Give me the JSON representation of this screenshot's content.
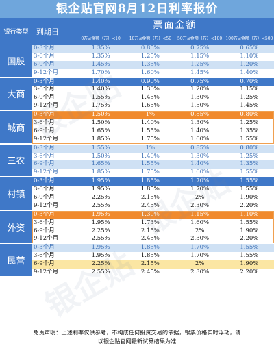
{
  "title": "银企贴官网8月12日利率报价",
  "header": {
    "bank_type": "银行类型",
    "term": "到期日",
    "face_value": "票面金额",
    "columns": [
      "0万≤金额（万）<10",
      "10万≤金额（万）<50",
      "50万≤金额（万）<100",
      "100万≤金额（万）<500"
    ]
  },
  "groups": [
    {
      "name": "国股",
      "rows": [
        {
          "term": "0-3个月",
          "values": [
            "1.35%",
            "0.85%",
            "0.75%",
            "0.65%"
          ],
          "style": "blue-soft"
        },
        {
          "term": "3-6个月",
          "values": [
            "1.35%",
            "1.25%",
            "1.15%",
            "1.10%"
          ],
          "style": "white-blue"
        },
        {
          "term": "6-9个月",
          "values": [
            "1.45%",
            "1.35%",
            "1.25%",
            "1.20%"
          ],
          "style": "blue-soft"
        },
        {
          "term": "9-12个月",
          "values": [
            "1.70%",
            "1.60%",
            "1.45%",
            "1.40%"
          ],
          "style": "white-blue"
        }
      ]
    },
    {
      "name": "大商",
      "rows": [
        {
          "term": "0-3个月",
          "values": [
            "1.40%",
            "0.90%",
            "0.75%",
            "0.70%"
          ],
          "style": "blue-strong"
        },
        {
          "term": "3-6个月",
          "values": [
            "1.40%",
            "1.30%",
            "1.20%",
            "1.15%"
          ],
          "style": "white-black"
        },
        {
          "term": "6-9个月",
          "values": [
            "1.55%",
            "1.45%",
            "1.30%",
            "1.25%"
          ],
          "style": "white-black"
        },
        {
          "term": "9-12个月",
          "values": [
            "1.75%",
            "1.65%",
            "1.50%",
            "1.45%"
          ],
          "style": "white-black"
        }
      ]
    },
    {
      "name": "城商",
      "border": "orange",
      "rows": [
        {
          "term": "0-3个月",
          "values": [
            "1.50%",
            "1%",
            "0.85%",
            "0.80%"
          ],
          "style": "orange"
        },
        {
          "term": "3-6个月",
          "values": [
            "1.50%",
            "1.40%",
            "1.30%",
            "1.25%"
          ],
          "style": "white-black"
        },
        {
          "term": "6-9个月",
          "values": [
            "1.65%",
            "1.55%",
            "1.40%",
            "1.35%"
          ],
          "style": "white-black"
        },
        {
          "term": "9-12个月",
          "values": [
            "1.85%",
            "1.75%",
            "1.60%",
            "1.55%"
          ],
          "style": "white-black"
        }
      ]
    },
    {
      "name": "三农",
      "rows": [
        {
          "term": "0-3个月",
          "values": [
            "1.55%",
            "1%",
            "0.85%",
            "0.80%"
          ],
          "style": "blue-soft"
        },
        {
          "term": "3-6个月",
          "values": [
            "1.50%",
            "1.40%",
            "1.30%",
            "1.25%"
          ],
          "style": "white-blue"
        },
        {
          "term": "6-9个月",
          "values": [
            "1.65%",
            "1.55%",
            "1.40%",
            "1.35%"
          ],
          "style": "blue-soft"
        },
        {
          "term": "9-12个月",
          "values": [
            "1.85%",
            "1.75%",
            "1.60%",
            "1.55%"
          ],
          "style": "white-blue"
        }
      ]
    },
    {
      "name": "村镇",
      "rows": [
        {
          "term": "0-3个月",
          "values": [
            "1.95%",
            "1.85%",
            "1.70%",
            "1.55%"
          ],
          "style": "blue-strong"
        },
        {
          "term": "3-6个月",
          "values": [
            "1.95%",
            "1.85%",
            "1.70%",
            "1.55%"
          ],
          "style": "white-black"
        },
        {
          "term": "6-9个月",
          "values": [
            "2.25%",
            "2.15%",
            "2%",
            "1.90%"
          ],
          "style": "white-black"
        },
        {
          "term": "9-12个月",
          "values": [
            "2.55%",
            "2.45%",
            "2.30%",
            "2.20%"
          ],
          "style": "white-black"
        }
      ]
    },
    {
      "name": "外资",
      "border": "orange",
      "rows": [
        {
          "term": "0-3个月",
          "values": [
            "1.95%",
            "1.30%",
            "1.15%",
            "1.10%"
          ],
          "style": "orange"
        },
        {
          "term": "3-6个月",
          "values": [
            "1.95%",
            "1.73%",
            "1.60%",
            "1.55%"
          ],
          "style": "white-black"
        },
        {
          "term": "6-9个月",
          "values": [
            "2.25%",
            "2.15%",
            "2%",
            "1.90%"
          ],
          "style": "white-black"
        },
        {
          "term": "9-12个月",
          "values": [
            "2.55%",
            "2.45%",
            "2.30%",
            "2.20%"
          ],
          "style": "white-black"
        }
      ]
    },
    {
      "name": "民营",
      "rows": [
        {
          "term": "0-3个月",
          "values": [
            "1.95%",
            "1.85%",
            "1.70%",
            "1.55%"
          ],
          "style": "blue-soft"
        },
        {
          "term": "3-6个月",
          "values": [
            "1.95%",
            "1.85%",
            "1.70%",
            "1.55%"
          ],
          "style": "white-black"
        },
        {
          "term": "6-9个月",
          "values": [
            "2.25%",
            "2.15%",
            "2%",
            "1.90%"
          ],
          "style": "yellow"
        },
        {
          "term": "9-12个月",
          "values": [
            "2.55%",
            "2.45%",
            "2.30%",
            "2.20%"
          ],
          "style": "white-black"
        }
      ]
    }
  ],
  "footer": {
    "line1": "免责声明：上述利率仅供参考，不构成任何投资交易的依据，银票价格实时浮动，请",
    "line2": "以银企贴官网最新试算结果为准"
  },
  "watermark": "银企贴",
  "colors": {
    "title_bg": "#6fa6dc",
    "header_bg": "#3f78c8",
    "soft_blue": "#cfe1f4",
    "orange": "#f08a2d",
    "yellow": "#fbe6a3"
  }
}
